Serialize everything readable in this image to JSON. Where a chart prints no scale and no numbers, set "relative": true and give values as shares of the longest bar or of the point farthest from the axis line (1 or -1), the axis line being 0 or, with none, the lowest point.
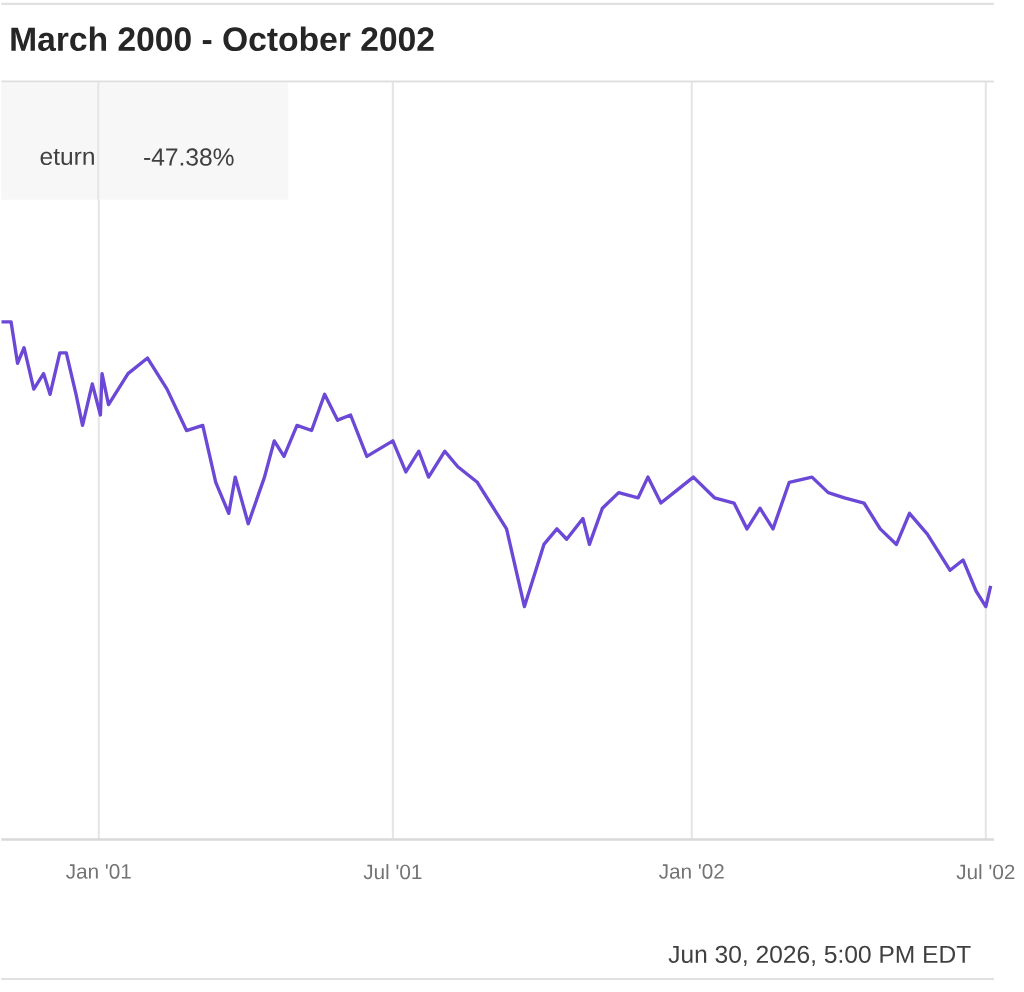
{
  "chart_data": {
    "type": "line",
    "title": "March 2000 - October 2002",
    "relative": true,
    "grid": "x",
    "annotations": [
      "eturn",
      "-47.38%",
      "Jun 30, 2026, 5:00 PM EDT"
    ],
    "xlim": [
      "2000-11-02",
      "2002-07-06"
    ],
    "xticks": [
      {
        "value": "2001-01-01",
        "label": "Jan '01"
      },
      {
        "value": "2001-07-01",
        "label": "Jul '01"
      },
      {
        "value": "2002-01-01",
        "label": "Jan '02"
      },
      {
        "value": "2002-07-01",
        "label": "Jul '02"
      }
    ],
    "x": [
      "2000-11-02",
      "2000-11-08",
      "2000-11-12",
      "2000-11-16",
      "2000-11-22",
      "2000-11-28",
      "2000-12-02",
      "2000-12-08",
      "2000-12-12",
      "2000-12-18",
      "2000-12-22",
      "2000-12-28",
      "2001-01-02",
      "2001-01-03",
      "2001-01-07",
      "2001-01-19",
      "2001-01-31",
      "2001-02-12",
      "2001-02-24",
      "2001-03-06",
      "2001-03-14",
      "2001-03-22",
      "2001-03-26",
      "2001-04-03",
      "2001-04-13",
      "2001-04-19",
      "2001-04-25",
      "2001-05-03",
      "2001-05-12",
      "2001-05-20",
      "2001-05-28",
      "2001-06-05",
      "2001-06-15",
      "2001-07-01",
      "2001-07-09",
      "2001-07-17",
      "2001-07-23",
      "2001-08-02",
      "2001-08-10",
      "2001-08-22",
      "2001-08-30",
      "2001-09-09",
      "2001-09-20",
      "2001-10-02",
      "2001-10-10",
      "2001-10-16",
      "2001-10-26",
      "2001-10-30",
      "2001-11-07",
      "2001-11-17",
      "2001-11-29",
      "2001-12-05",
      "2001-12-13",
      "2001-12-21",
      "2002-01-02",
      "2002-01-15",
      "2002-01-27",
      "2002-02-04",
      "2002-02-12",
      "2002-02-20",
      "2002-03-02",
      "2002-03-16",
      "2002-03-26",
      "2002-04-05",
      "2002-04-17",
      "2002-04-27",
      "2002-05-07",
      "2002-05-15",
      "2002-05-26",
      "2002-06-09",
      "2002-06-17",
      "2002-06-25",
      "2002-07-01",
      "2002-07-04"
    ],
    "series": [
      {
        "color": "#6b48d6",
        "values": [
          1.0,
          1.0,
          0.92,
          0.95,
          0.87,
          0.9,
          0.86,
          0.94,
          0.94,
          0.86,
          0.8,
          0.88,
          0.82,
          0.9,
          0.84,
          0.9,
          0.93,
          0.87,
          0.79,
          0.8,
          0.69,
          0.63,
          0.7,
          0.61,
          0.7,
          0.77,
          0.74,
          0.8,
          0.79,
          0.86,
          0.81,
          0.82,
          0.74,
          0.77,
          0.71,
          0.75,
          0.7,
          0.75,
          0.72,
          0.69,
          0.65,
          0.6,
          0.45,
          0.57,
          0.6,
          0.58,
          0.62,
          0.57,
          0.64,
          0.67,
          0.66,
          0.7,
          0.65,
          0.67,
          0.7,
          0.66,
          0.65,
          0.6,
          0.64,
          0.6,
          0.69,
          0.7,
          0.67,
          0.66,
          0.65,
          0.6,
          0.57,
          0.63,
          0.59,
          0.52,
          0.54,
          0.48,
          0.45,
          0.49
        ]
      }
    ]
  }
}
